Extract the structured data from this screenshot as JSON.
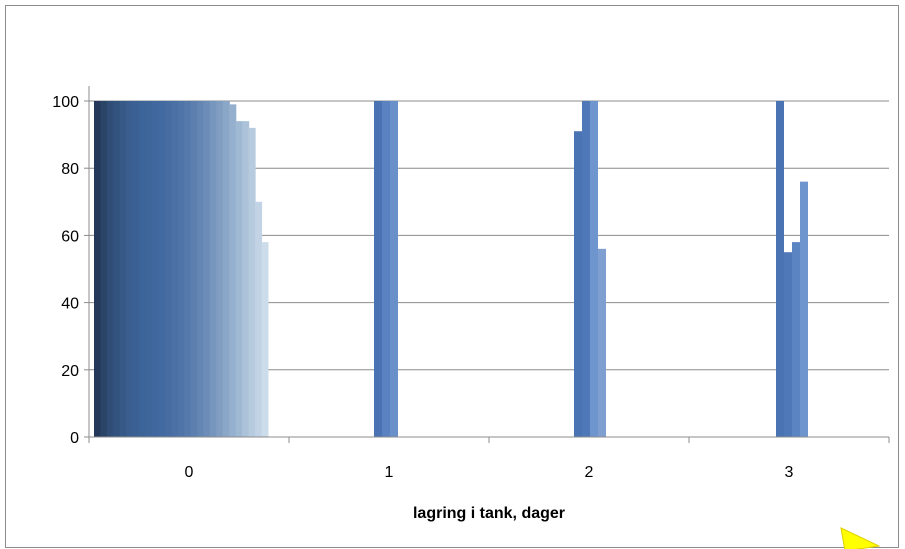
{
  "chart_data": {
    "type": "bar",
    "title": "",
    "xlabel": "lagring i tank, dager",
    "ylabel": "",
    "ylim": [
      0,
      100
    ],
    "yticks": [
      0,
      20,
      40,
      60,
      80,
      100
    ],
    "categories": [
      "0",
      "1",
      "2",
      "3"
    ],
    "grid": true,
    "legend": "none",
    "groups": [
      {
        "category": "0",
        "values": [
          100,
          100,
          100,
          100,
          100,
          100,
          100,
          100,
          100,
          100,
          100,
          100,
          100,
          100,
          100,
          100,
          100,
          100,
          100,
          100,
          100,
          99,
          94,
          94,
          92,
          70,
          58
        ],
        "colors": [
          "#24395a",
          "#2a4468",
          "#2f4d75",
          "#33537f",
          "#365988",
          "#395e8f",
          "#3b6194",
          "#3d6498",
          "#3f669b",
          "#41689e",
          "#436aa0",
          "#466ca2",
          "#4a70a5",
          "#4f74a8",
          "#5579ab",
          "#5c7faf",
          "#6486b3",
          "#6d8db8",
          "#7796bd",
          "#819ec2",
          "#8ba7c8",
          "#95b0ce",
          "#a0b9d3",
          "#abc2d9",
          "#b6cbde",
          "#c1d3e4",
          "#ccdcea"
        ]
      },
      {
        "category": "1",
        "values": [
          100,
          100,
          100
        ],
        "colors": [
          "#4a73b3",
          "#5a82c0",
          "#6a90ca"
        ]
      },
      {
        "category": "2",
        "values": [
          91,
          100,
          100,
          56
        ],
        "colors": [
          "#4a73b3",
          "#4f78b8",
          "#6f95cf",
          "#7f9fd0"
        ]
      },
      {
        "category": "3",
        "values": [
          100,
          55,
          58,
          76
        ],
        "colors": [
          "#4a73b3",
          "#4f78b8",
          "#5b84c2",
          "#6f95cf"
        ]
      }
    ],
    "bar_color": "#4a73b3",
    "gridline_color": "#8c8c8c"
  }
}
